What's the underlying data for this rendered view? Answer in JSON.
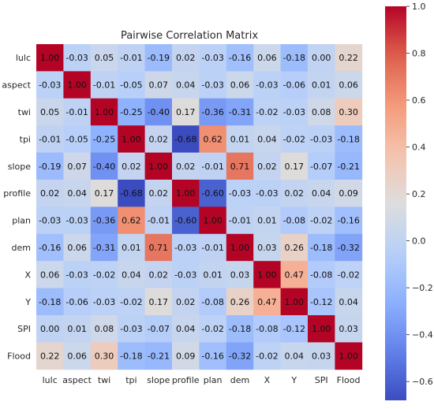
{
  "chart_data": {
    "type": "heatmap",
    "title": "Pairwise Correlation Matrix",
    "variables": [
      "lulc",
      "aspect",
      "twi",
      "tpi",
      "slope",
      "profile",
      "plan",
      "dem",
      "X",
      "Y",
      "SPI",
      "Flood"
    ],
    "matrix": [
      [
        1.0,
        -0.03,
        0.05,
        -0.01,
        -0.19,
        0.02,
        -0.03,
        -0.16,
        0.06,
        -0.18,
        0.0,
        0.22
      ],
      [
        -0.03,
        1.0,
        -0.01,
        -0.05,
        0.07,
        0.04,
        -0.03,
        0.06,
        -0.03,
        -0.06,
        0.01,
        0.06
      ],
      [
        0.05,
        -0.01,
        1.0,
        -0.25,
        -0.4,
        0.17,
        -0.36,
        -0.31,
        -0.02,
        -0.03,
        0.08,
        0.3
      ],
      [
        -0.01,
        -0.05,
        -0.25,
        1.0,
        0.02,
        -0.68,
        0.62,
        0.01,
        0.04,
        -0.02,
        -0.03,
        -0.18
      ],
      [
        -0.19,
        0.07,
        -0.4,
        0.02,
        1.0,
        0.02,
        -0.01,
        0.71,
        0.02,
        0.17,
        -0.07,
        -0.21
      ],
      [
        0.02,
        0.04,
        0.17,
        -0.68,
        0.02,
        1.0,
        -0.6,
        -0.03,
        -0.03,
        0.02,
        0.04,
        0.09
      ],
      [
        -0.03,
        -0.03,
        -0.36,
        0.62,
        -0.01,
        -0.6,
        1.0,
        -0.01,
        0.01,
        -0.08,
        -0.02,
        -0.16
      ],
      [
        -0.16,
        0.06,
        -0.31,
        0.01,
        0.71,
        -0.03,
        -0.01,
        1.0,
        0.03,
        0.26,
        -0.18,
        -0.32
      ],
      [
        0.06,
        -0.03,
        -0.02,
        0.04,
        0.02,
        -0.03,
        0.01,
        0.03,
        1.0,
        0.47,
        -0.08,
        -0.02
      ],
      [
        -0.18,
        -0.06,
        -0.03,
        -0.02,
        0.17,
        0.02,
        -0.08,
        0.26,
        0.47,
        1.0,
        -0.12,
        0.04
      ],
      [
        0.0,
        0.01,
        0.08,
        -0.03,
        -0.07,
        0.04,
        -0.02,
        -0.18,
        -0.08,
        -0.12,
        1.0,
        0.03
      ],
      [
        0.22,
        0.06,
        0.3,
        -0.18,
        -0.21,
        0.09,
        -0.16,
        -0.32,
        -0.02,
        0.04,
        0.03,
        1.0
      ]
    ],
    "colorbar": {
      "colormap": "coolwarm",
      "vmin": -0.68,
      "vmax": 1.0,
      "ticks": [
        1.0,
        0.8,
        0.6,
        0.4,
        0.2,
        0.0,
        -0.2,
        -0.4,
        -0.6
      ],
      "tick_labels": [
        "1.0",
        "0.8",
        "0.6",
        "0.4",
        "0.2",
        "0.0",
        "−0.2",
        "−0.4",
        "−0.6"
      ]
    }
  }
}
